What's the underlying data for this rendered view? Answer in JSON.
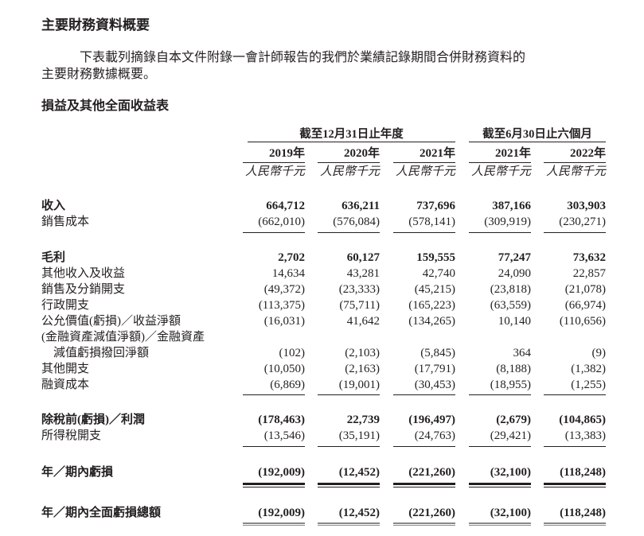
{
  "section_title": "主要財務資料概要",
  "intro_lines": [
    "下表載列摘錄自本文件附錄一會計師報告的我們於業績記錄期間合併財務資料的",
    "主要財務數據概要。"
  ],
  "statement_title": "損益及其他全面收益表",
  "column_groups": [
    "截至12月31日止年度",
    "截至6月30日止六個月"
  ],
  "columns": [
    "2019年",
    "2020年",
    "2021年",
    "2021年",
    "2022年"
  ],
  "unit": "人民幣千元",
  "rows": [
    {
      "label": "收入",
      "bold": true,
      "values": [
        "664,712",
        "636,211",
        "737,696",
        "387,166",
        "303,903"
      ]
    },
    {
      "label": "銷售成本",
      "bold": false,
      "values": [
        "(662,010)",
        "(576,084)",
        "(578,141)",
        "(309,919)",
        "(230,271)"
      ]
    },
    {
      "label": "毛利",
      "bold": true,
      "values": [
        "2,702",
        "60,127",
        "159,555",
        "77,247",
        "73,632"
      ]
    },
    {
      "label": "其他收入及收益",
      "bold": false,
      "values": [
        "14,634",
        "43,281",
        "42,740",
        "24,090",
        "22,857"
      ]
    },
    {
      "label": "銷售及分銷開支",
      "bold": false,
      "values": [
        "(49,372)",
        "(23,333)",
        "(45,215)",
        "(23,818)",
        "(21,078)"
      ]
    },
    {
      "label": "行政開支",
      "bold": false,
      "values": [
        "(113,375)",
        "(75,711)",
        "(165,223)",
        "(63,559)",
        "(66,974)"
      ]
    },
    {
      "label": "公允價值(虧損)／收益淨額",
      "bold": false,
      "values": [
        "(16,031)",
        "41,642",
        "(134,265)",
        "10,140",
        "(110,656)"
      ]
    },
    {
      "label": "(金融資產減值淨額)／金融資產",
      "bold": false,
      "values": []
    },
    {
      "label": "　減值虧損撥回淨額",
      "bold": false,
      "values": [
        "(102)",
        "(2,103)",
        "(5,845)",
        "364",
        "(9)"
      ]
    },
    {
      "label": "其他開支",
      "bold": false,
      "values": [
        "(10,050)",
        "(2,163)",
        "(17,791)",
        "(8,188)",
        "(1,382)"
      ]
    },
    {
      "label": "融資成本",
      "bold": false,
      "values": [
        "(6,869)",
        "(19,001)",
        "(30,453)",
        "(18,955)",
        "(1,255)"
      ]
    },
    {
      "label": "除稅前(虧損)／利潤",
      "bold": true,
      "values": [
        "(178,463)",
        "22,739",
        "(196,497)",
        "(2,679)",
        "(104,865)"
      ]
    },
    {
      "label": "所得稅開支",
      "bold": false,
      "values": [
        "(13,546)",
        "(35,191)",
        "(24,763)",
        "(29,421)",
        "(13,383)"
      ]
    },
    {
      "label": "年／期內虧損",
      "bold": true,
      "values": [
        "(192,009)",
        "(12,452)",
        "(221,260)",
        "(32,100)",
        "(118,248)"
      ]
    },
    {
      "label": "年／期內全面虧損總額",
      "bold": true,
      "values": [
        "(192,009)",
        "(12,452)",
        "(221,260)",
        "(32,100)",
        "(118,248)"
      ]
    }
  ]
}
